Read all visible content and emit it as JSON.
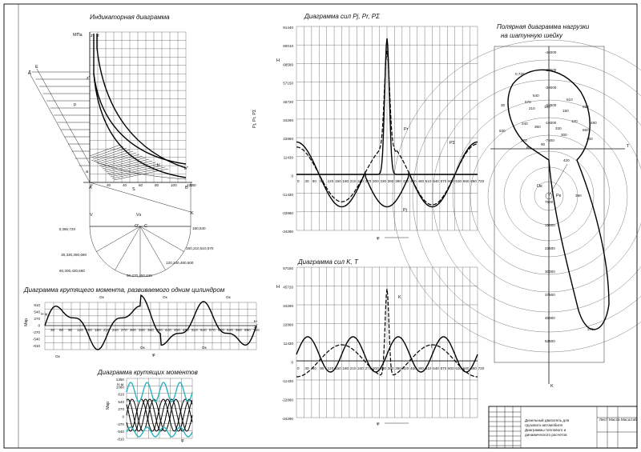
{
  "indicator": {
    "title": "Индикаторная диаграмма",
    "unit": "МПа",
    "pt_z1": "z",
    "pt_z2": "z",
    "pt_z3": "z'",
    "pt_D": "Д",
    "pt_E": "Е",
    "pt_p": "p",
    "pt_b": "b'",
    "pt_b2": "b''",
    "pt_a": "a",
    "pt_A": "A",
    "pt_B": "B",
    "pt_S": "S",
    "pt_V": "V",
    "pt_Vs": "Vs",
    "pt_K": "K",
    "pt_O": "O'",
    "pt_C": "C",
    "pt_r": "r",
    "axis_ticks": [
      "0",
      "20",
      "40",
      "60",
      "80",
      "100",
      "120",
      "140"
    ],
    "axis_end": "140",
    "crank_labels": [
      "0,360,720",
      "180,540",
      "150,210,510,570",
      "30,330,390,690",
      "120,240,480,600",
      "60,300,420,660",
      "90,270,450,630"
    ]
  },
  "torque": {
    "title": "Диаграмма крутящего момента, развиваемого одним цилиндром",
    "yticks": [
      "810",
      "540",
      "270",
      "0",
      "-270",
      "-540",
      "-810"
    ],
    "unit_top": "Н·м",
    "ylabel": "Мкр",
    "xlabel": "φ",
    "mark_Ok": "Oк",
    "x_ticks": [
      "30",
      "60",
      "90",
      "120",
      "150",
      "180",
      "210",
      "240",
      "270",
      "300",
      "330",
      "360",
      "390",
      "420",
      "450",
      "480",
      "510",
      "540",
      "570",
      "600",
      "630",
      "660",
      "690",
      "720"
    ]
  },
  "torques": {
    "title": "Диаграмма крутящих моментов",
    "yticks": [
      "1350",
      "1080",
      "810",
      "540",
      "270",
      "0",
      "-270",
      "-540",
      "-810"
    ],
    "unit_top": "Н·м",
    "ylabel": "Мкр",
    "xlabel": "φ"
  },
  "forces_P": {
    "title": "Диаграмма сил  Pj, Pr, PΣ",
    "yticks": [
      "91440",
      "80010",
      "68580",
      "57150",
      "45720",
      "34290",
      "22860",
      "11430",
      "0",
      "-11430",
      "-22860",
      "-34290"
    ],
    "unit": "Н",
    "ylabel": "Pj, Pr, PΣ",
    "xlabel": "φ",
    "lbl_P1": "Pr",
    "lbl_P2": "PΣ",
    "lbl_Pj": "Pj",
    "x_ticks": [
      "0",
      "30",
      "60",
      "90",
      "120",
      "150",
      "180",
      "210",
      "240",
      "270",
      "300",
      "330",
      "360",
      "390",
      "420",
      "450",
      "480",
      "510",
      "540",
      "570",
      "600",
      "630",
      "660",
      "690",
      "720"
    ]
  },
  "forces_K": {
    "title": "Диаграмма сил K, T",
    "yticks": [
      "57150",
      "45720",
      "34290",
      "22860",
      "11430",
      "0",
      "-11430",
      "-22860",
      "-34290"
    ],
    "unit": "Н",
    "ylabel": "K, T",
    "xlabel": "φ",
    "lbl_K": "K",
    "lbl_T": "T"
  },
  "polar": {
    "title_1": "Полярная диаграмма нагрузки",
    "title_2": "на шатунную шейку",
    "axis_T": "T",
    "axis_K": "K",
    "scale_up": [
      "-45000",
      "-37500",
      "-30000",
      "-22500",
      "-15000",
      "-7500"
    ],
    "scale_down": [
      "7500",
      "15000",
      "22500",
      "30000",
      "37500",
      "45000",
      "52500"
    ],
    "angle_labels": [
      "0,720",
      "570",
      "540",
      "510",
      "690",
      "30",
      "210",
      "180",
      "150",
      "120",
      "630",
      "240",
      "360",
      "330",
      "660",
      "60",
      "270",
      "300",
      "90",
      "450",
      "480",
      "420",
      "390",
      "370"
    ],
    "pt_O": "Oк",
    "pt_Pk": "Pк"
  },
  "stamp": {
    "text_1": "Дизельный двигатель для",
    "text_2": "грузового автомобиля",
    "text_3": "Диаграммы теплового и",
    "text_4": "динамического расчетов",
    "col_1": "Лист",
    "col_2": "Масса",
    "col_3": "Масштаб"
  }
}
